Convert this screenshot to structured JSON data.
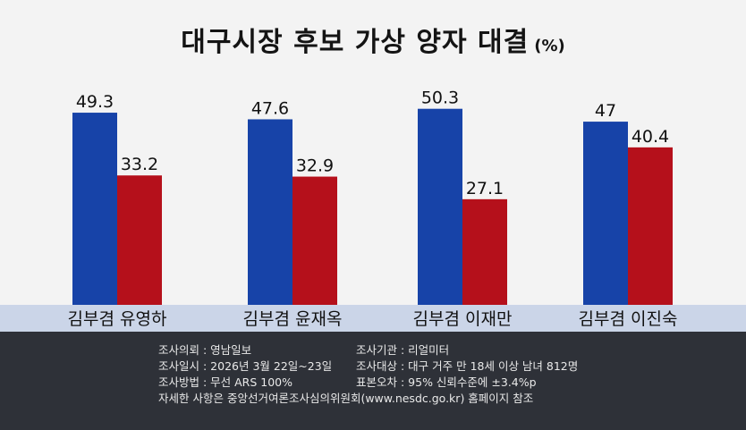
{
  "chart_title": "대구시장 후보 가상 양자 대결",
  "chart_unit": "(%)",
  "colors": {
    "series_a": "#1743a8",
    "series_b": "#b5101b"
  },
  "chart_data": {
    "type": "bar",
    "title": "대구시장 후보 가상 양자 대결",
    "unit": "(%)",
    "categories": [
      "김부겸 유영하",
      "김부겸 윤재옥",
      "김부겸 이재만",
      "김부겸 이진숙"
    ],
    "series": [
      {
        "values": [
          49.3,
          47.6,
          50.3,
          47
        ],
        "labels": [
          "49.3",
          "47.6",
          "50.3",
          "47"
        ],
        "color": "#1743a8"
      },
      {
        "values": [
          33.2,
          32.9,
          27.1,
          40.4
        ],
        "labels": [
          "33.2",
          "32.9",
          "27.1",
          "40.4"
        ],
        "color": "#b5101b"
      }
    ],
    "ylim": [
      0,
      60
    ],
    "grid": false,
    "legend": "none"
  },
  "footer": {
    "requester": "조사의뢰 : 영남일보",
    "agency": "조사기관 : 리얼미터",
    "period": "조사일시 : 2026년 3월 22일~23일",
    "target": "조사대상 : 대구 거주 만 18세 이상 남녀 812명",
    "method": "조사방법 : 무선 ARS 100%",
    "error": "표본오차 : 95% 신뢰수준에 ±3.4%p",
    "note": "자세한 사항은 중앙선거여론조사심의위원회(www.nesdc.go.kr) 홈페이지 참조"
  }
}
